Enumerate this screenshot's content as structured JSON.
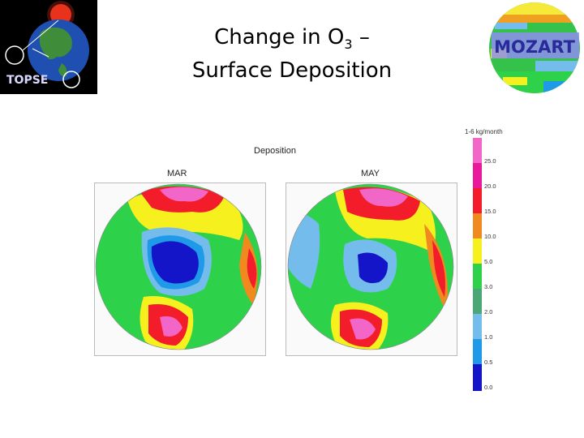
{
  "slide": {
    "title_line1_prefix": "Change in O",
    "title_subscript": "3",
    "title_line1_suffix": " –",
    "title_line2": "Surface Deposition"
  },
  "logos": {
    "left_text": "TOPSE",
    "right_text": "MOZART"
  },
  "figure": {
    "title": "Deposition",
    "maps": [
      {
        "label": "MAR"
      },
      {
        "label": "MAY"
      }
    ],
    "colorbar": {
      "unit": "1-6 kg/month",
      "ticks": [
        "25.0",
        "20.0",
        "15.0",
        "10.0",
        "5.0",
        "3.0",
        "2.0",
        "1.0",
        "0.5",
        "0.0"
      ],
      "colors": [
        "#f266c8",
        "#e8199a",
        "#f21c2a",
        "#f08a1e",
        "#f5f01e",
        "#2ed24a",
        "#4aa876",
        "#74bcec",
        "#1e9ae8",
        "#1414c8"
      ]
    }
  }
}
